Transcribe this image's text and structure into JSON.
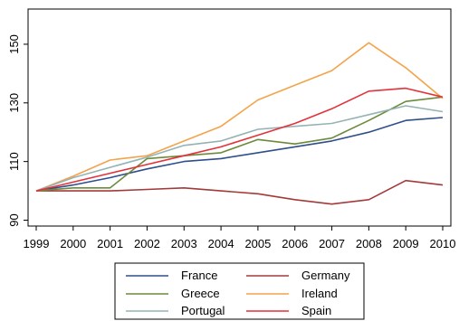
{
  "chart_data": {
    "type": "line",
    "title": "",
    "xlabel": "",
    "ylabel": "",
    "x": [
      1999,
      2000,
      2001,
      2002,
      2003,
      2004,
      2005,
      2006,
      2007,
      2008,
      2009,
      2010
    ],
    "xlim": [
      1999,
      2010
    ],
    "ylim": [
      88,
      162
    ],
    "yticks": [
      90,
      110,
      130,
      150
    ],
    "grid": false,
    "legend": "bottom",
    "series": [
      {
        "name": "France",
        "color": "#2f4e8c",
        "values": [
          100,
          102,
          104.5,
          107.5,
          110,
          111,
          113,
          115,
          117,
          120,
          124,
          125
        ]
      },
      {
        "name": "Germany",
        "color": "#a33a3a",
        "values": [
          100,
          100,
          100,
          100.5,
          101,
          100,
          99,
          97,
          95.5,
          97,
          103.5,
          102
        ]
      },
      {
        "name": "Greece",
        "color": "#6c8a3c",
        "values": [
          100,
          101,
          101,
          111,
          112,
          113,
          117.5,
          116,
          118,
          124,
          130.5,
          132
        ]
      },
      {
        "name": "Ireland",
        "color": "#f4a34b",
        "values": [
          100,
          105,
          110.5,
          112,
          117,
          122,
          131,
          136,
          141,
          150.5,
          142,
          131.5
        ]
      },
      {
        "name": "Portugal",
        "color": "#93b3b5",
        "values": [
          100,
          104.5,
          108,
          111.5,
          115.5,
          117,
          121,
          122,
          123,
          126,
          129,
          127
        ]
      },
      {
        "name": "Spain",
        "color": "#e2323a",
        "values": [
          100,
          103,
          106,
          109,
          112,
          115,
          119,
          123,
          128,
          134,
          135,
          132
        ]
      }
    ]
  }
}
